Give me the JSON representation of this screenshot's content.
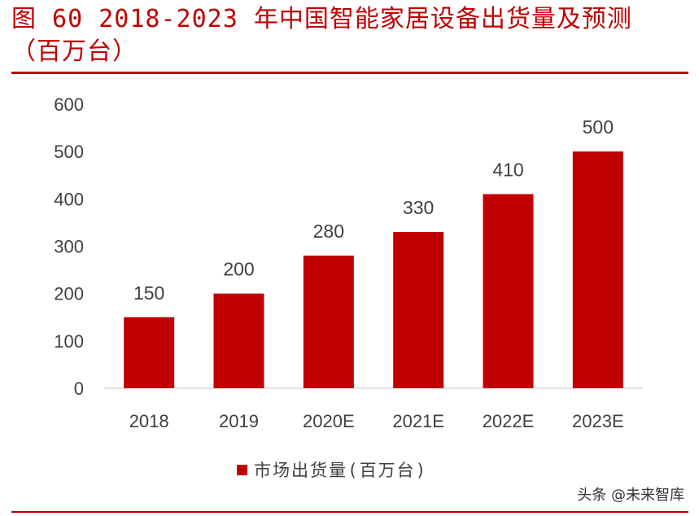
{
  "header": {
    "title_line1": "图 60  2018-2023 年中国智能家居设备出货量及预测",
    "title_line2": "（百万台）"
  },
  "colors": {
    "accent": "#c00000",
    "bar": "#c00000",
    "axis": "#d9d9d9",
    "text": "#404040"
  },
  "chart_data": {
    "type": "bar",
    "title": "2018-2023 年中国智能家居设备出货量及预测（百万台）",
    "categories": [
      "2018",
      "2019",
      "2020E",
      "2021E",
      "2022E",
      "2023E"
    ],
    "series": [
      {
        "name": "市场出货量(百万台)",
        "values": [
          150,
          200,
          280,
          330,
          410,
          500
        ]
      }
    ],
    "data_labels": [
      "150",
      "200",
      "280",
      "330",
      "410",
      "500"
    ],
    "yticks": [
      0,
      100,
      200,
      300,
      400,
      500,
      600
    ],
    "ylim": [
      0,
      600
    ],
    "xlabel": "",
    "ylabel": "",
    "grid": false,
    "legend_position": "bottom"
  },
  "legend": {
    "label": "市场出货量(百万台)"
  },
  "watermark": {
    "text": "头条 @未来智库"
  }
}
